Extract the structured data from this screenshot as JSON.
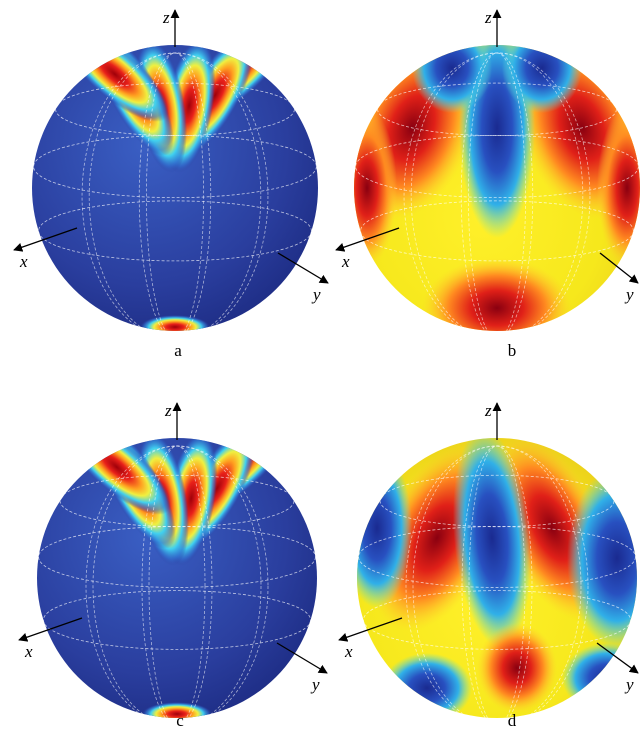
{
  "panels": [
    {
      "label": "a",
      "axes": {
        "x": "x",
        "y": "y",
        "z": "z"
      }
    },
    {
      "label": "b",
      "axes": {
        "x": "x",
        "y": "y",
        "z": "z"
      }
    },
    {
      "label": "c",
      "axes": {
        "x": "x",
        "y": "y",
        "z": "z"
      }
    },
    {
      "label": "d",
      "axes": {
        "x": "x",
        "y": "y",
        "z": "z"
      }
    }
  ]
}
